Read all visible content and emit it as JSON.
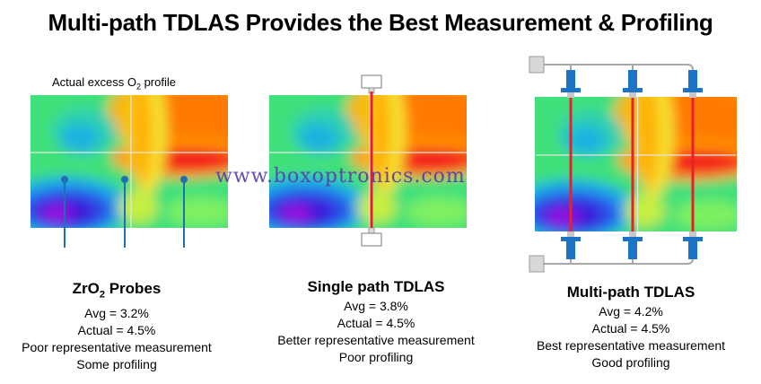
{
  "title": "Multi-path TDLAS Provides the Best Measurement & Profiling",
  "profile_label": {
    "prefix": "Actual excess O",
    "sub": "2",
    "suffix": " profile"
  },
  "panels": [
    {
      "heading_prefix": "ZrO",
      "heading_sub": "2",
      "heading_suffix": " Probes",
      "avg": "Avg = 3.2%",
      "actual": "Actual = 4.5%",
      "line1": "Poor representative measurement",
      "line2": "Some profiling"
    },
    {
      "heading": "Single path TDLAS",
      "avg": "Avg = 3.8%",
      "actual": "Actual = 4.5%",
      "line1": "Better representative measurement",
      "line2": "Poor profiling"
    },
    {
      "heading": "Multi-path TDLAS",
      "avg": "Avg = 4.2%",
      "actual": "Actual = 4.5%",
      "line1": "Best representative measurement",
      "line2": "Good profiling"
    }
  ],
  "watermark": "www.boxoptronics.com",
  "colors": {
    "laser": "#e8202a",
    "probe": "#1f6fb5",
    "sensor": "#1d74c6"
  }
}
